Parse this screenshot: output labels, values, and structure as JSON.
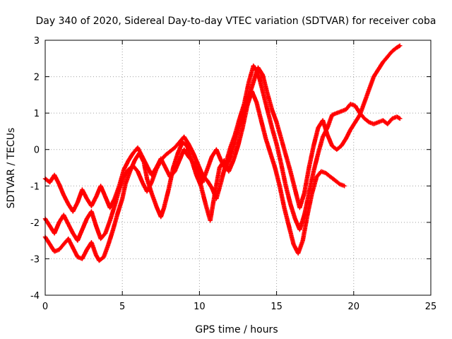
{
  "chart_data": {
    "type": "scatter",
    "title": "Day 340 of 2020, Sidereal Day-to-day VTEC variation (SDTVAR) for receiver coba",
    "xlabel": "GPS time / hours",
    "ylabel": "SDTVAR / TECUs",
    "xlim": [
      0,
      25
    ],
    "ylim": [
      -4,
      3
    ],
    "xticks": [
      0,
      5,
      10,
      15,
      20,
      25
    ],
    "yticks": [
      -4,
      -3,
      -2,
      -1,
      0,
      1,
      2,
      3
    ],
    "grid": true,
    "marker": "plus",
    "color": "#ff0000",
    "series": [
      {
        "x": [
          0.0,
          0.3,
          0.6,
          0.9,
          1.2,
          1.5,
          1.8,
          2.1,
          2.4,
          2.7,
          3.0,
          3.3,
          3.5,
          3.8,
          4.1,
          4.4,
          4.7,
          5.0,
          5.2,
          5.5,
          5.8,
          6.1,
          6.4,
          6.6,
          6.9,
          7.2,
          7.5,
          7.7,
          8.0,
          8.3,
          8.6,
          8.9,
          9.2,
          9.5,
          9.8,
          10.1,
          10.4,
          10.7,
          11.0,
          11.3,
          11.6,
          11.9,
          12.2,
          12.5,
          12.8,
          13.1,
          13.4,
          13.7,
          14.0,
          14.3,
          14.6,
          14.9,
          15.2,
          15.5,
          15.8,
          16.1,
          16.4,
          16.7,
          17.0,
          17.3,
          17.6,
          17.9,
          18.2,
          18.5,
          18.8,
          19.1,
          19.4
        ],
        "y": [
          -2.4,
          -2.6,
          -2.8,
          -2.75,
          -2.6,
          -2.45,
          -2.7,
          -2.95,
          -3.0,
          -2.75,
          -2.55,
          -2.9,
          -3.05,
          -2.95,
          -2.6,
          -2.2,
          -1.75,
          -1.35,
          -0.95,
          -0.6,
          -0.3,
          -0.1,
          -0.35,
          -0.8,
          -1.2,
          -1.55,
          -1.85,
          -1.6,
          -1.1,
          -0.5,
          -0.1,
          0.2,
          0.1,
          -0.3,
          -0.7,
          -1.0,
          -1.5,
          -1.95,
          -1.2,
          -0.5,
          -0.3,
          -0.6,
          -0.3,
          0.1,
          0.6,
          1.2,
          1.6,
          1.3,
          0.8,
          0.3,
          -0.1,
          -0.5,
          -1.0,
          -1.6,
          -2.1,
          -2.6,
          -2.85,
          -2.5,
          -1.8,
          -1.2,
          -0.75,
          -0.6,
          -0.65,
          -0.75,
          -0.85,
          -0.95,
          -1.0
        ]
      },
      {
        "x": [
          0.0,
          0.3,
          0.6,
          0.9,
          1.2,
          1.5,
          1.8,
          2.1,
          2.4,
          2.7,
          3.0,
          3.3,
          3.6,
          3.9,
          4.2,
          4.5,
          4.8,
          5.1,
          5.4,
          5.7,
          6.0,
          6.3,
          6.6,
          6.9,
          7.2,
          7.5,
          7.8,
          8.1,
          8.4,
          8.7,
          9.0,
          9.3,
          9.6,
          9.9,
          10.2,
          10.5,
          10.8,
          11.1,
          11.4,
          11.7,
          12.0,
          12.3,
          12.6,
          12.9,
          13.2,
          13.5,
          13.8,
          14.1,
          14.4,
          14.7,
          15.0,
          15.3,
          15.6,
          15.9,
          16.2,
          16.5,
          16.8,
          17.1,
          17.4,
          17.7,
          18.0,
          18.3,
          18.6,
          18.9,
          19.2,
          19.5,
          19.8,
          20.1,
          20.4,
          20.7,
          21.0,
          21.3,
          21.6,
          21.9,
          22.2,
          22.5,
          22.8,
          23.0
        ],
        "y": [
          -1.9,
          -2.1,
          -2.3,
          -2.0,
          -1.8,
          -2.05,
          -2.3,
          -2.5,
          -2.2,
          -1.9,
          -1.7,
          -2.1,
          -2.45,
          -2.3,
          -1.95,
          -1.55,
          -1.1,
          -0.75,
          -0.55,
          -0.45,
          -0.6,
          -0.9,
          -1.15,
          -0.9,
          -0.55,
          -0.3,
          -0.15,
          -0.05,
          0.05,
          0.2,
          0.35,
          0.15,
          -0.1,
          -0.4,
          -0.7,
          -0.85,
          -1.05,
          -1.35,
          -0.9,
          -0.4,
          0.05,
          0.4,
          0.85,
          1.25,
          1.85,
          2.3,
          2.1,
          1.6,
          1.1,
          0.6,
          0.15,
          -0.4,
          -1.0,
          -1.5,
          -1.9,
          -2.2,
          -1.8,
          -1.2,
          -0.6,
          -0.1,
          0.35,
          0.6,
          0.95,
          1.0,
          1.05,
          1.1,
          1.25,
          1.2,
          1.0,
          0.85,
          0.75,
          0.7,
          0.75,
          0.8,
          0.7,
          0.85,
          0.9,
          0.85
        ]
      },
      {
        "x": [
          0.0,
          0.3,
          0.6,
          0.9,
          1.2,
          1.5,
          1.8,
          2.1,
          2.4,
          2.7,
          3.0,
          3.3,
          3.6,
          3.9,
          4.2,
          4.5,
          4.8,
          5.1,
          5.4,
          5.7,
          6.0,
          6.3,
          6.6,
          6.9,
          7.2,
          7.5,
          7.8,
          8.1,
          8.4,
          8.7,
          9.0,
          9.3,
          9.6,
          9.9,
          10.2,
          10.5,
          10.8,
          11.1,
          11.4,
          11.7,
          12.0,
          12.3,
          12.6,
          12.9,
          13.2,
          13.5,
          13.8,
          14.1,
          14.4,
          14.7,
          15.0,
          15.3,
          15.6,
          15.9,
          16.2,
          16.5,
          16.8,
          17.1,
          17.4,
          17.7,
          18.0,
          18.3,
          18.6,
          18.9,
          19.2,
          19.5,
          19.8,
          20.1,
          20.4,
          20.7,
          21.0,
          21.3,
          21.6,
          21.9,
          22.2,
          22.5,
          22.8,
          23.0
        ],
        "y": [
          -0.8,
          -0.9,
          -0.7,
          -0.95,
          -1.25,
          -1.5,
          -1.7,
          -1.45,
          -1.1,
          -1.35,
          -1.55,
          -1.3,
          -1.0,
          -1.3,
          -1.6,
          -1.35,
          -1.0,
          -0.55,
          -0.3,
          -0.1,
          0.05,
          -0.2,
          -0.45,
          -0.7,
          -0.5,
          -0.25,
          -0.5,
          -0.75,
          -0.6,
          -0.3,
          0.0,
          -0.2,
          -0.35,
          -0.6,
          -0.9,
          -0.55,
          -0.2,
          0.0,
          -0.3,
          -0.55,
          -0.2,
          0.2,
          0.65,
          1.05,
          1.45,
          1.85,
          2.25,
          2.05,
          1.55,
          1.1,
          0.75,
          0.3,
          -0.15,
          -0.6,
          -1.1,
          -1.6,
          -1.2,
          -0.5,
          0.1,
          0.6,
          0.8,
          0.4,
          0.1,
          0.0,
          0.1,
          0.3,
          0.55,
          0.75,
          0.95,
          1.3,
          1.65,
          2.0,
          2.2,
          2.4,
          2.55,
          2.7,
          2.8,
          2.85
        ]
      }
    ]
  }
}
